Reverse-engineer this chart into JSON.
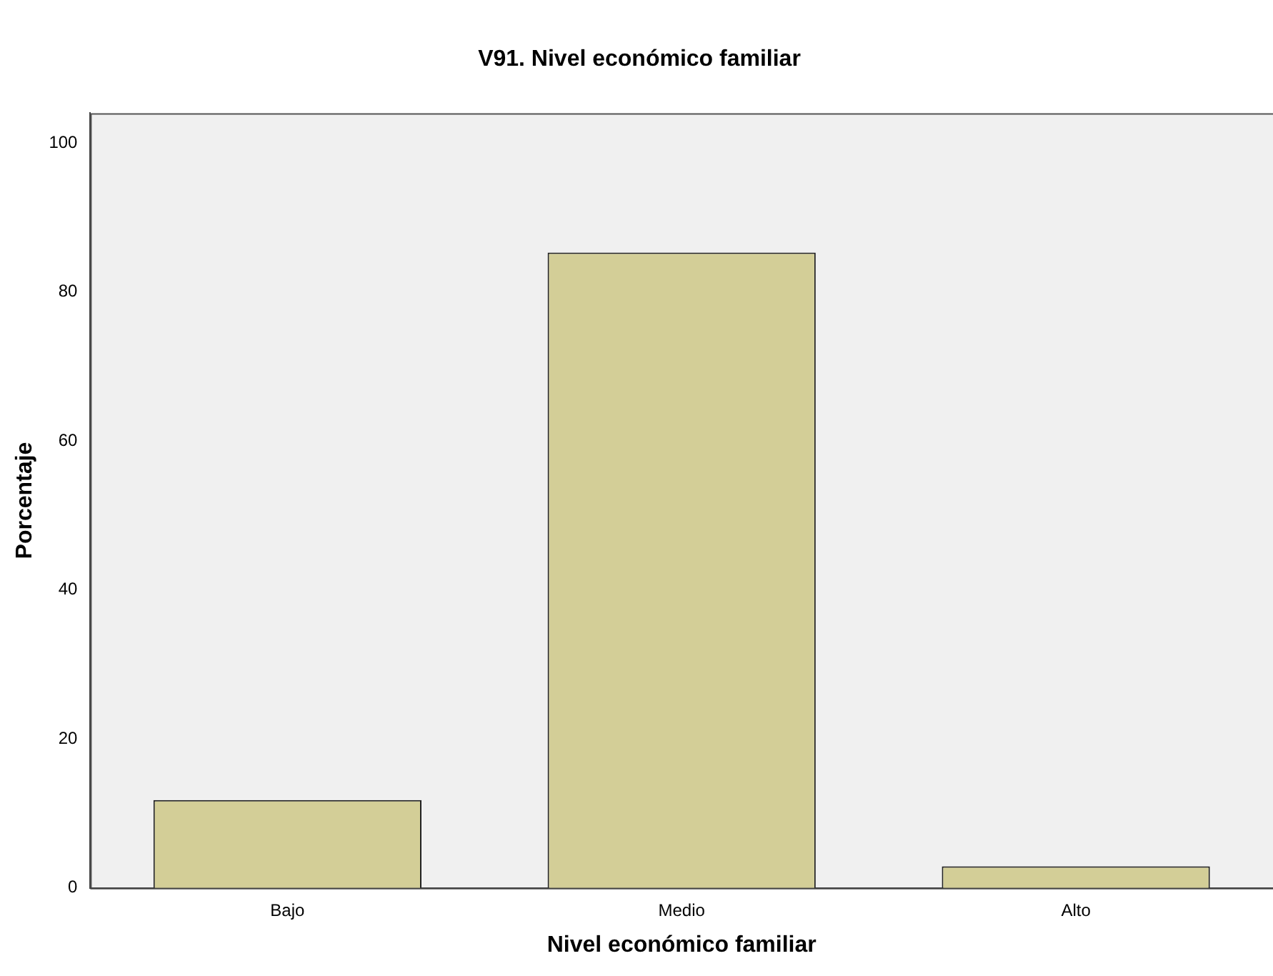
{
  "chart_data": {
    "type": "bar",
    "title": "V91. Nivel económico familiar",
    "xlabel": "Nivel económico familiar",
    "ylabel": "Porcentaje",
    "categories": [
      "Bajo",
      "Medio",
      "Alto"
    ],
    "values": [
      11.8,
      85.3,
      2.9
    ],
    "color": "#d3ce97",
    "ylim": [
      0,
      104
    ],
    "yticks": [
      0,
      20,
      40,
      60,
      80,
      100
    ],
    "grid": false,
    "legend": false
  }
}
